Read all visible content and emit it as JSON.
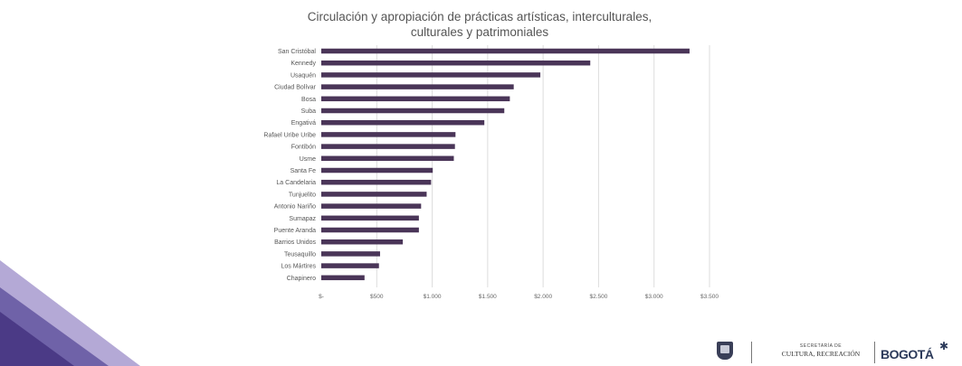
{
  "colors": {
    "bar": "#4a3558",
    "gridline": "#dddddd",
    "deco_dark": "#4b3a86",
    "deco_light": "#b4a9d6",
    "deco_mid": "#6f62a8"
  },
  "footer": {
    "secretaria_small": "SECRETARÍA DE",
    "secretaria": "CULTURA, RECREACIÓN",
    "bogota": "BOGOTÁ",
    "icons": [
      "coat-of-arms-icon",
      "star-icon"
    ]
  },
  "chart_data": {
    "type": "bar",
    "orientation": "horizontal",
    "title": "Circulación y apropiación  de prácticas artísticas, interculturales, culturales y patrimoniales",
    "title_lines": [
      "Circulación y apropiación  de prácticas artísticas, interculturales,",
      "culturales y patrimoniales"
    ],
    "categories": [
      "San Cristóbal",
      "Kennedy",
      "Usaquén",
      "Ciudad Bolívar",
      "Bosa",
      "Suba",
      "Engativá",
      "Rafael Uribe Uribe",
      "Fontibón",
      "Usme",
      "Santa Fe",
      "La Candelaria",
      "Tunjuelito",
      "Antonio Nariño",
      "Sumapaz",
      "Puente Aranda",
      "Barrios Unidos",
      "Teusaquillo",
      "Los Mártires",
      "Chapinero"
    ],
    "values": [
      3320,
      2425,
      1975,
      1735,
      1700,
      1650,
      1470,
      1210,
      1205,
      1195,
      1005,
      990,
      950,
      900,
      880,
      880,
      735,
      530,
      520,
      390
    ],
    "xlim": [
      0,
      3500
    ],
    "xtick_values": [
      0,
      500,
      1000,
      1500,
      2000,
      2500,
      3000,
      3500
    ],
    "xtick_labels": [
      "$-",
      "$500",
      "$1.000",
      "$1.500",
      "$2.000",
      "$2.500",
      "$3.000",
      "$3.500"
    ],
    "grid": true,
    "legend": "none"
  }
}
